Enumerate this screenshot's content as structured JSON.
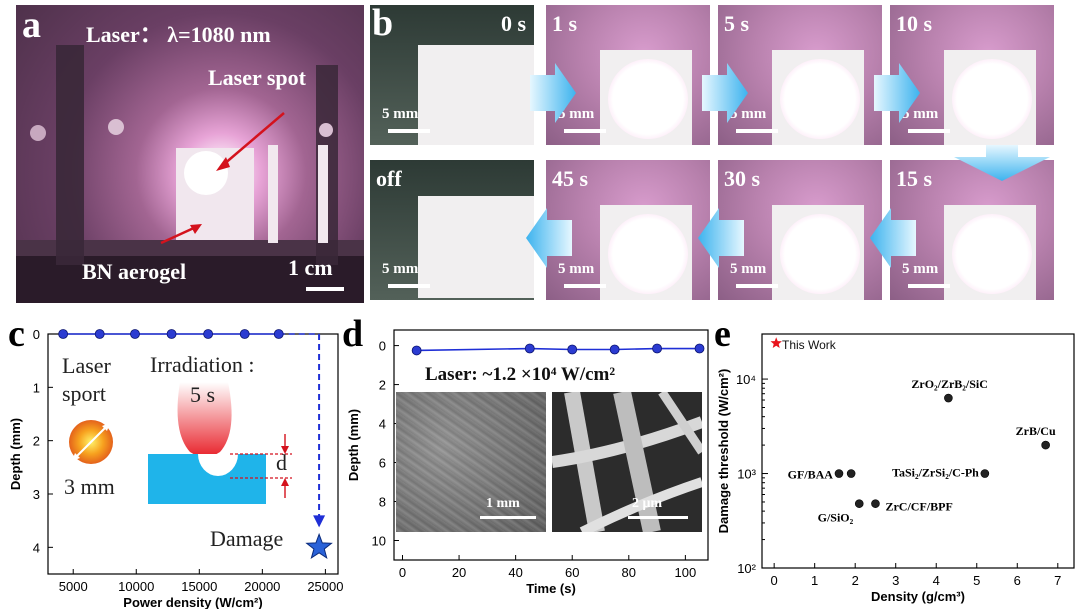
{
  "panel_a": {
    "label": "a",
    "laser_text": "Laser： λ=1080 nm",
    "spot_label": "Laser spot",
    "sample_label": "BN aerogel",
    "scale_label": "1 cm"
  },
  "panel_b": {
    "label": "b",
    "frames": [
      {
        "time": "0 s",
        "scale": "5 mm"
      },
      {
        "time": "1 s",
        "scale": "5 mm"
      },
      {
        "time": "5 s",
        "scale": "5 mm"
      },
      {
        "time": "10 s",
        "scale": "5 mm"
      },
      {
        "time": "15 s",
        "scale": "5 mm"
      },
      {
        "time": "30 s",
        "scale": "5 mm"
      },
      {
        "time": "45 s",
        "scale": "5 mm"
      },
      {
        "time": "off",
        "scale": "5 mm"
      }
    ]
  },
  "panel_c": {
    "label": "c",
    "laser_sport": [
      "Laser",
      "sport"
    ],
    "irradiation": "Irradiation :",
    "duration": "5 s",
    "spot_size": "3 mm",
    "d_label": "d",
    "damage_label": "Damage",
    "colors": {
      "marker": "#2b3bd1",
      "line": "#1f2fd6",
      "block": "#1fb4ea",
      "star": "#2a62d8"
    }
  },
  "panel_d": {
    "label": "d",
    "laser_note": "Laser: ~1.2 ×10⁴ W/cm²",
    "sem_left_scale": "1 mm",
    "sem_right_scale": "2 μm"
  },
  "panel_e": {
    "label": "e",
    "legend": "This Work"
  },
  "chart_data": [
    {
      "id": "c",
      "type": "scatter",
      "xlabel": "Power density (W/cm²)",
      "ylabel": "Depth (mm)",
      "xlim": [
        3000,
        26000
      ],
      "ylim": [
        0,
        4.5
      ],
      "y_inverted": true,
      "xticks": [
        5000,
        10000,
        15000,
        20000,
        25000
      ],
      "yticks": [
        0,
        1,
        2,
        3,
        4
      ],
      "series": [
        {
          "x": [
            4200,
            7100,
            9900,
            12800,
            15700,
            18600,
            21300
          ],
          "y": [
            0,
            0,
            0,
            0,
            0,
            0,
            0
          ]
        }
      ],
      "damage_point": {
        "x": 24500,
        "y": 4.0
      }
    },
    {
      "id": "d",
      "type": "line",
      "xlabel": "Time (s)",
      "ylabel": "Depth (mm)",
      "xlim": [
        -3,
        108
      ],
      "ylim": [
        -0.8,
        11
      ],
      "y_inverted": true,
      "xticks": [
        0,
        20,
        40,
        60,
        80,
        100
      ],
      "yticks": [
        0,
        2,
        4,
        6,
        8,
        10
      ],
      "series": [
        {
          "x": [
            5,
            45,
            60,
            75,
            90,
            105
          ],
          "y": [
            0.25,
            0.15,
            0.2,
            0.2,
            0.15,
            0.15
          ]
        }
      ]
    },
    {
      "id": "e",
      "type": "scatter",
      "xlabel": "Density (g/cm³)",
      "ylabel": "Damage threshold (W/cm²)",
      "xlim": [
        -0.3,
        7.4
      ],
      "ylim": [
        100,
        30000
      ],
      "y_log": true,
      "xticks": [
        0,
        1,
        2,
        3,
        4,
        5,
        6,
        7
      ],
      "yticks": [
        100,
        1000,
        10000
      ],
      "ytick_labels": [
        "10²",
        "10³",
        "10⁴"
      ],
      "points": [
        {
          "label": "ZrO₂/ZrB₂/SiC",
          "x": 4.3,
          "y": 6300
        },
        {
          "label": "ZrB/Cu",
          "x": 6.7,
          "y": 2000
        },
        {
          "label": "GF/BAA",
          "x": 1.6,
          "y": 1000
        },
        {
          "label": "GF/BAA",
          "x": 1.9,
          "y": 1000
        },
        {
          "label": "TaSi₂/ZrSi₂/C-Ph",
          "x": 5.2,
          "y": 1000
        },
        {
          "label": "G/SiO₂",
          "x": 2.1,
          "y": 480
        },
        {
          "label": "ZrC/CF/BPF",
          "x": 2.5,
          "y": 480
        }
      ],
      "this_work": {
        "x": 0.05,
        "y": 24000
      }
    }
  ]
}
